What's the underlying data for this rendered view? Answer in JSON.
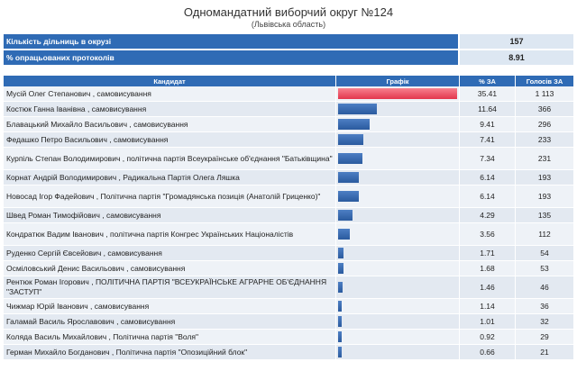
{
  "header": {
    "title": "Одномандатний виборчий округ №124",
    "subtitle": "(Львівська область)"
  },
  "summary": [
    {
      "label": "Кількість дільниць в окрузі",
      "value": "157"
    },
    {
      "label": "% опрацьованих протоколів",
      "value": "8.91"
    }
  ],
  "table": {
    "headers": [
      "Кандидат",
      "Графік",
      "% ЗА",
      "Голосів ЗА"
    ],
    "rows": [
      {
        "candidate": "Мусій Олег Степанович , самовисування",
        "percent": "35.41",
        "votes": "1 113",
        "share": 35.41
      },
      {
        "candidate": "Костюк Ганна Іванівна , самовисування",
        "percent": "11.64",
        "votes": "366",
        "share": 11.64
      },
      {
        "candidate": "Блавацький Михайло Васильович , самовисування",
        "percent": "9.41",
        "votes": "296",
        "share": 9.41
      },
      {
        "candidate": "Федашко Петро Васильович , самовисування",
        "percent": "7.41",
        "votes": "233",
        "share": 7.41
      },
      {
        "candidate": "Курпіль Степан Володимирович , політична партія Всеукраїнське об'єднання \"Батьківщина\"",
        "percent": "7.34",
        "votes": "231",
        "share": 7.34
      },
      {
        "candidate": "Корнат Андрій Володимирович , Радикальна Партія Олега Ляшка",
        "percent": "6.14",
        "votes": "193",
        "share": 6.14
      },
      {
        "candidate": "Новосад Ігор Фадейович , Політична партія \"Громадянська позиція (Анатолій Гриценко)\"",
        "percent": "6.14",
        "votes": "193",
        "share": 6.14
      },
      {
        "candidate": "Швед Роман Тимофійович , самовисування",
        "percent": "4.29",
        "votes": "135",
        "share": 4.29
      },
      {
        "candidate": "Кондратюк Вадим Іванович , політична партія Конгрес Українських Націоналістів",
        "percent": "3.56",
        "votes": "112",
        "share": 3.56
      },
      {
        "candidate": "Руденко Сергій Євсейович , самовисування",
        "percent": "1.71",
        "votes": "54",
        "share": 1.71
      },
      {
        "candidate": "Осміловський Денис Васильович , самовисування",
        "percent": "1.68",
        "votes": "53",
        "share": 1.68
      },
      {
        "candidate": "Рентюк Роман Ігорович , ПОЛІТИЧНА ПАРТІЯ \"ВСЕУКРАЇНСЬКЕ АГРАРНЕ ОБ'ЄДНАННЯ \"ЗАСТУП\"",
        "percent": "1.46",
        "votes": "46",
        "share": 1.46
      },
      {
        "candidate": "Чижмар Юрій Іванович , самовисування",
        "percent": "1.14",
        "votes": "36",
        "share": 1.14
      },
      {
        "candidate": "Галамай Василь Ярославович , самовисування",
        "percent": "1.01",
        "votes": "32",
        "share": 1.01
      },
      {
        "candidate": "Коляда Василь Михайлович , Політична партія \"Воля\"",
        "percent": "0.92",
        "votes": "29",
        "share": 0.92
      },
      {
        "candidate": "Герман Михайло Богданович , Політична партія \"Опозиційний блок\"",
        "percent": "0.66",
        "votes": "21",
        "share": 0.66
      }
    ]
  },
  "colors": {
    "header_blue": "#2f6bb5",
    "bar_blue": "#3a6db3",
    "bar_leader": "#e3374d"
  }
}
